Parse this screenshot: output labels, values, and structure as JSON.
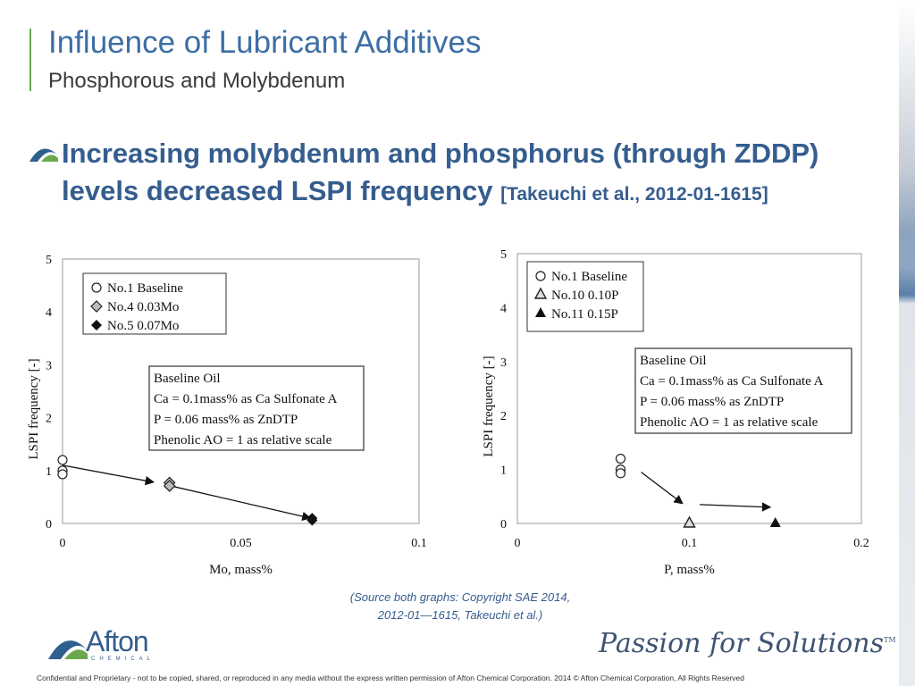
{
  "slide": {
    "title": "Influence of Lubricant Additives",
    "subtitle": "Phosphorous and Molybdenum",
    "bullet_main": "Increasing molybdenum and phosphorus (through ZDDP) levels decreased LSPI frequency ",
    "bullet_ref": "[Takeuchi et al., 2012-01-1615]",
    "source_line1": "(Source both graphs: Copyright SAE 2014,",
    "source_line2": "2012-01—1615, Takeuchi et al.)",
    "footer": "Confidential and Proprietary - not to be copied, shared, or reproduced in any media without the express written permission of Afton Chemical Corporation.  2014 © Afton Chemical Corporation, All Rights Reserved",
    "logo_text": "Afton",
    "logo_subtext": "CHEMICAL",
    "tagline": "Passion for Solutions",
    "tagline_tm": "TM"
  },
  "colors": {
    "title": "#3d6ea4",
    "bullet": "#355d8e",
    "accent_green": "#6aa84f"
  },
  "chart_data": [
    {
      "type": "scatter",
      "xlabel": "Mo, mass%",
      "ylabel": "LSPI frequency [-]",
      "xlim": [
        0,
        0.1
      ],
      "ylim": [
        0,
        5
      ],
      "xticks": [
        0,
        0.05,
        0.1
      ],
      "xtick_labels": [
        "0",
        "0.05",
        "0.1"
      ],
      "yticks": [
        0,
        1,
        2,
        3,
        4,
        5
      ],
      "ytick_labels": [
        "0",
        "1",
        "2",
        "3",
        "4",
        "5"
      ],
      "legend_position": "top-left",
      "series": [
        {
          "name": "No.1 Baseline",
          "marker": "circle-open",
          "points": [
            [
              0,
              1.2
            ],
            [
              0,
              1.0
            ],
            [
              0,
              0.93
            ]
          ]
        },
        {
          "name": "No.4 0.03Mo",
          "marker": "diamond-hatched",
          "points": [
            [
              0.03,
              0.77
            ],
            [
              0.03,
              0.71
            ]
          ]
        },
        {
          "name": "No.5 0.07Mo",
          "marker": "diamond-filled",
          "points": [
            [
              0.07,
              0.1
            ],
            [
              0.07,
              0.06
            ]
          ]
        }
      ],
      "arrows": [
        [
          [
            0,
            1.1
          ],
          [
            0.0255,
            0.78
          ]
        ],
        [
          [
            0.031,
            0.7
          ],
          [
            0.0695,
            0.1
          ]
        ]
      ],
      "annotation": [
        "Baseline Oil",
        "Ca = 0.1mass% as Ca Sulfonate A",
        "P = 0.06 mass% as ZnDTP",
        "Phenolic AO = 1 as relative scale"
      ]
    },
    {
      "type": "scatter",
      "xlabel": "P, mass%",
      "ylabel": "LSPI frequency [-]",
      "xlim": [
        0,
        0.2
      ],
      "ylim": [
        0,
        5
      ],
      "xticks": [
        0,
        0.1,
        0.2
      ],
      "xtick_labels": [
        "0",
        "0.1",
        "0.2"
      ],
      "yticks": [
        0,
        1,
        2,
        3,
        4,
        5
      ],
      "ytick_labels": [
        "0",
        "1",
        "2",
        "3",
        "4",
        "5"
      ],
      "legend_position": "top-left",
      "series": [
        {
          "name": "No.1 Baseline",
          "marker": "circle-open",
          "points": [
            [
              0.06,
              1.2
            ],
            [
              0.06,
              1.0
            ],
            [
              0.06,
              0.93
            ]
          ]
        },
        {
          "name": "No.10 0.10P",
          "marker": "triangle-open",
          "points": [
            [
              0.1,
              0.0
            ]
          ]
        },
        {
          "name": "No.11 0.15P",
          "marker": "triangle-filled",
          "points": [
            [
              0.15,
              0.0
            ]
          ]
        }
      ],
      "arrows": [
        [
          [
            0.072,
            0.95
          ],
          [
            0.096,
            0.37
          ]
        ],
        [
          [
            0.106,
            0.35
          ],
          [
            0.147,
            0.3
          ]
        ]
      ],
      "annotation": [
        "Baseline Oil",
        "Ca = 0.1mass% as Ca Sulfonate A",
        "P = 0.06 mass% as ZnDTP",
        "Phenolic AO = 1 as relative scale"
      ]
    }
  ]
}
